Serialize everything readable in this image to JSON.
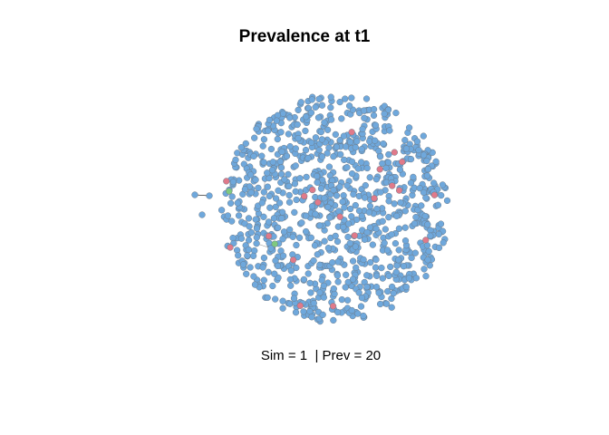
{
  "chart_data": {
    "type": "scatter",
    "title": "Prevalence at t1",
    "caption": "Sim = 1  | Prev = 20",
    "node_count": 1000,
    "prevalence": 20,
    "colors": {
      "susceptible": "#6fa8dc",
      "infected": "#e07a8a",
      "recovered": "#7fc97f",
      "node_border": "#6b7b8a",
      "edge": "#333333"
    },
    "grid": false,
    "legend": "none"
  }
}
